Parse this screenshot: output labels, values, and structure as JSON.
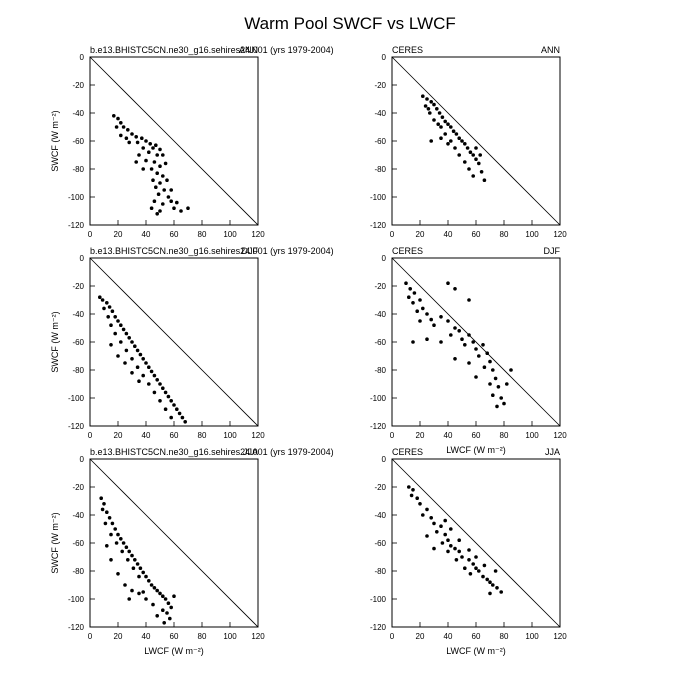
{
  "figure": {
    "title": "Warm Pool SWCF vs LWCF"
  },
  "chart_data": [
    {
      "type": "scatter",
      "id": "model-ann",
      "left_label": "b.e13.BHISTC5CN.ne30_g16.sehires24.001 (yrs 1979-2004)",
      "right_label": "ANN",
      "xlabel": "",
      "ylabel": "SWCF (W m⁻²)",
      "xlim": [
        0,
        120
      ],
      "ylim": [
        -120,
        0
      ],
      "xticks": [
        0,
        20,
        40,
        60,
        80,
        100,
        120
      ],
      "yticks": [
        0,
        -20,
        -40,
        -60,
        -80,
        -100,
        -120
      ],
      "one_to_one_line": true,
      "points": [
        [
          17,
          -42
        ],
        [
          20,
          -44
        ],
        [
          22,
          -47
        ],
        [
          19,
          -50
        ],
        [
          24,
          -50
        ],
        [
          27,
          -52
        ],
        [
          22,
          -56
        ],
        [
          26,
          -58
        ],
        [
          30,
          -55
        ],
        [
          33,
          -57
        ],
        [
          28,
          -61
        ],
        [
          34,
          -61
        ],
        [
          37,
          -58
        ],
        [
          40,
          -60
        ],
        [
          43,
          -62
        ],
        [
          38,
          -65
        ],
        [
          45,
          -65
        ],
        [
          47,
          -63
        ],
        [
          50,
          -66
        ],
        [
          42,
          -68
        ],
        [
          48,
          -70
        ],
        [
          52,
          -70
        ],
        [
          35,
          -70
        ],
        [
          40,
          -74
        ],
        [
          46,
          -75
        ],
        [
          50,
          -78
        ],
        [
          54,
          -76
        ],
        [
          44,
          -80
        ],
        [
          48,
          -83
        ],
        [
          52,
          -85
        ],
        [
          45,
          -88
        ],
        [
          50,
          -90
        ],
        [
          55,
          -88
        ],
        [
          47,
          -93
        ],
        [
          53,
          -95
        ],
        [
          49,
          -98
        ],
        [
          56,
          -100
        ],
        [
          46,
          -103
        ],
        [
          52,
          -105
        ],
        [
          58,
          -103
        ],
        [
          44,
          -108
        ],
        [
          50,
          -110
        ],
        [
          60,
          -108
        ],
        [
          48,
          -112
        ],
        [
          65,
          -110
        ],
        [
          70,
          -108
        ],
        [
          33,
          -75
        ],
        [
          38,
          -80
        ],
        [
          58,
          -95
        ],
        [
          62,
          -104
        ]
      ]
    },
    {
      "type": "scatter",
      "id": "ceres-ann",
      "left_label": "CERES",
      "right_label": "ANN",
      "xlabel": "",
      "ylabel": "",
      "xlim": [
        0,
        120
      ],
      "ylim": [
        -120,
        0
      ],
      "xticks": [
        0,
        20,
        40,
        60,
        80,
        100,
        120
      ],
      "yticks": [
        0,
        -20,
        -40,
        -60,
        -80,
        -100,
        -120
      ],
      "one_to_one_line": true,
      "points": [
        [
          22,
          -28
        ],
        [
          25,
          -30
        ],
        [
          28,
          -32
        ],
        [
          24,
          -35
        ],
        [
          30,
          -34
        ],
        [
          32,
          -37
        ],
        [
          27,
          -40
        ],
        [
          34,
          -40
        ],
        [
          36,
          -43
        ],
        [
          30,
          -45
        ],
        [
          38,
          -46
        ],
        [
          40,
          -48
        ],
        [
          35,
          -50
        ],
        [
          42,
          -50
        ],
        [
          44,
          -53
        ],
        [
          38,
          -55
        ],
        [
          46,
          -55
        ],
        [
          48,
          -58
        ],
        [
          42,
          -60
        ],
        [
          50,
          -60
        ],
        [
          52,
          -62
        ],
        [
          45,
          -65
        ],
        [
          54,
          -65
        ],
        [
          56,
          -68
        ],
        [
          48,
          -70
        ],
        [
          58,
          -70
        ],
        [
          60,
          -73
        ],
        [
          52,
          -75
        ],
        [
          62,
          -76
        ],
        [
          55,
          -80
        ],
        [
          64,
          -82
        ],
        [
          58,
          -85
        ],
        [
          66,
          -88
        ],
        [
          28,
          -60
        ],
        [
          35,
          -58
        ],
        [
          40,
          -62
        ],
        [
          60,
          -65
        ],
        [
          63,
          -70
        ],
        [
          26,
          -37
        ],
        [
          33,
          -48
        ]
      ]
    },
    {
      "type": "scatter",
      "id": "model-djf",
      "left_label": "b.e13.BHISTC5CN.ne30_g16.sehires24.001 (yrs 1979-2004)",
      "right_label": "DJF",
      "xlabel": "",
      "ylabel": "SWCF (W m⁻²)",
      "xlim": [
        0,
        120
      ],
      "ylim": [
        -120,
        0
      ],
      "xticks": [
        0,
        20,
        40,
        60,
        80,
        100,
        120
      ],
      "yticks": [
        0,
        -20,
        -40,
        -60,
        -80,
        -100,
        -120
      ],
      "one_to_one_line": true,
      "points": [
        [
          7,
          -28
        ],
        [
          9,
          -30
        ],
        [
          12,
          -32
        ],
        [
          10,
          -36
        ],
        [
          14,
          -35
        ],
        [
          16,
          -38
        ],
        [
          13,
          -42
        ],
        [
          18,
          -42
        ],
        [
          20,
          -45
        ],
        [
          15,
          -48
        ],
        [
          22,
          -48
        ],
        [
          24,
          -51
        ],
        [
          18,
          -54
        ],
        [
          26,
          -54
        ],
        [
          28,
          -57
        ],
        [
          22,
          -60
        ],
        [
          30,
          -60
        ],
        [
          32,
          -63
        ],
        [
          26,
          -66
        ],
        [
          34,
          -66
        ],
        [
          36,
          -69
        ],
        [
          30,
          -72
        ],
        [
          38,
          -72
        ],
        [
          40,
          -75
        ],
        [
          34,
          -78
        ],
        [
          42,
          -78
        ],
        [
          44,
          -81
        ],
        [
          38,
          -84
        ],
        [
          46,
          -84
        ],
        [
          48,
          -87
        ],
        [
          42,
          -90
        ],
        [
          50,
          -90
        ],
        [
          52,
          -93
        ],
        [
          46,
          -96
        ],
        [
          54,
          -96
        ],
        [
          56,
          -99
        ],
        [
          50,
          -102
        ],
        [
          58,
          -102
        ],
        [
          60,
          -105
        ],
        [
          54,
          -108
        ],
        [
          62,
          -108
        ],
        [
          64,
          -111
        ],
        [
          58,
          -114
        ],
        [
          66,
          -114
        ],
        [
          68,
          -117
        ],
        [
          20,
          -70
        ],
        [
          25,
          -75
        ],
        [
          30,
          -82
        ],
        [
          15,
          -62
        ],
        [
          35,
          -88
        ]
      ]
    },
    {
      "type": "scatter",
      "id": "ceres-djf",
      "left_label": "CERES",
      "right_label": "DJF",
      "xlabel": "LWCF (W m⁻²)",
      "ylabel": "",
      "xlim": [
        0,
        120
      ],
      "ylim": [
        -120,
        0
      ],
      "xticks": [
        0,
        20,
        40,
        60,
        80,
        100,
        120
      ],
      "yticks": [
        0,
        -20,
        -40,
        -60,
        -80,
        -100,
        -120
      ],
      "one_to_one_line": true,
      "points": [
        [
          10,
          -18
        ],
        [
          13,
          -22
        ],
        [
          12,
          -28
        ],
        [
          16,
          -25
        ],
        [
          15,
          -32
        ],
        [
          20,
          -30
        ],
        [
          18,
          -38
        ],
        [
          22,
          -36
        ],
        [
          25,
          -40
        ],
        [
          20,
          -45
        ],
        [
          28,
          -44
        ],
        [
          30,
          -48
        ],
        [
          35,
          -42
        ],
        [
          40,
          -45
        ],
        [
          45,
          -50
        ],
        [
          42,
          -55
        ],
        [
          48,
          -52
        ],
        [
          50,
          -58
        ],
        [
          55,
          -55
        ],
        [
          52,
          -62
        ],
        [
          58,
          -60
        ],
        [
          60,
          -65
        ],
        [
          65,
          -62
        ],
        [
          62,
          -70
        ],
        [
          68,
          -68
        ],
        [
          70,
          -74
        ],
        [
          66,
          -78
        ],
        [
          72,
          -80
        ],
        [
          74,
          -86
        ],
        [
          70,
          -90
        ],
        [
          76,
          -92
        ],
        [
          72,
          -98
        ],
        [
          78,
          -100
        ],
        [
          75,
          -106
        ],
        [
          80,
          -104
        ],
        [
          82,
          -90
        ],
        [
          85,
          -80
        ],
        [
          15,
          -60
        ],
        [
          25,
          -58
        ],
        [
          35,
          -60
        ],
        [
          45,
          -72
        ],
        [
          55,
          -75
        ],
        [
          60,
          -85
        ],
        [
          40,
          -18
        ],
        [
          45,
          -22
        ],
        [
          55,
          -30
        ]
      ]
    },
    {
      "type": "scatter",
      "id": "model-jja",
      "left_label": "b.e13.BHISTC5CN.ne30_g16.sehires24.001 (yrs 1979-2004)",
      "right_label": "JJA",
      "xlabel": "LWCF (W m⁻²)",
      "ylabel": "SWCF (W m⁻²)",
      "xlim": [
        0,
        120
      ],
      "ylim": [
        -120,
        0
      ],
      "xticks": [
        0,
        20,
        40,
        60,
        80,
        100,
        120
      ],
      "yticks": [
        0,
        -20,
        -40,
        -60,
        -80,
        -100,
        -120
      ],
      "one_to_one_line": true,
      "points": [
        [
          8,
          -28
        ],
        [
          10,
          -32
        ],
        [
          9,
          -36
        ],
        [
          12,
          -38
        ],
        [
          14,
          -42
        ],
        [
          11,
          -46
        ],
        [
          16,
          -46
        ],
        [
          18,
          -50
        ],
        [
          15,
          -54
        ],
        [
          20,
          -54
        ],
        [
          22,
          -57
        ],
        [
          19,
          -60
        ],
        [
          24,
          -60
        ],
        [
          26,
          -63
        ],
        [
          23,
          -66
        ],
        [
          28,
          -66
        ],
        [
          30,
          -69
        ],
        [
          27,
          -72
        ],
        [
          32,
          -72
        ],
        [
          34,
          -75
        ],
        [
          31,
          -78
        ],
        [
          36,
          -78
        ],
        [
          38,
          -81
        ],
        [
          35,
          -84
        ],
        [
          40,
          -84
        ],
        [
          42,
          -87
        ],
        [
          44,
          -90
        ],
        [
          46,
          -92
        ],
        [
          48,
          -94
        ],
        [
          50,
          -96
        ],
        [
          52,
          -98
        ],
        [
          54,
          -100
        ],
        [
          56,
          -103
        ],
        [
          58,
          -106
        ],
        [
          55,
          -110
        ],
        [
          57,
          -114
        ],
        [
          52,
          -108
        ],
        [
          45,
          -104
        ],
        [
          40,
          -100
        ],
        [
          35,
          -96
        ],
        [
          30,
          -94
        ],
        [
          25,
          -90
        ],
        [
          20,
          -82
        ],
        [
          15,
          -72
        ],
        [
          12,
          -62
        ],
        [
          48,
          -112
        ],
        [
          53,
          -117
        ],
        [
          60,
          -98
        ],
        [
          38,
          -95
        ],
        [
          28,
          -100
        ]
      ]
    },
    {
      "type": "scatter",
      "id": "ceres-jja",
      "left_label": "CERES",
      "right_label": "JJA",
      "xlabel": "LWCF (W m⁻²)",
      "ylabel": "",
      "xlim": [
        0,
        120
      ],
      "ylim": [
        -120,
        0
      ],
      "xticks": [
        0,
        20,
        40,
        60,
        80,
        100,
        120
      ],
      "yticks": [
        0,
        -20,
        -40,
        -60,
        -80,
        -100,
        -120
      ],
      "one_to_one_line": true,
      "points": [
        [
          12,
          -20
        ],
        [
          15,
          -22
        ],
        [
          14,
          -26
        ],
        [
          18,
          -28
        ],
        [
          20,
          -32
        ],
        [
          25,
          -36
        ],
        [
          22,
          -40
        ],
        [
          28,
          -42
        ],
        [
          30,
          -46
        ],
        [
          35,
          -48
        ],
        [
          32,
          -52
        ],
        [
          38,
          -54
        ],
        [
          40,
          -58
        ],
        [
          36,
          -60
        ],
        [
          42,
          -62
        ],
        [
          45,
          -64
        ],
        [
          40,
          -66
        ],
        [
          48,
          -66
        ],
        [
          50,
          -70
        ],
        [
          46,
          -72
        ],
        [
          55,
          -72
        ],
        [
          58,
          -75
        ],
        [
          52,
          -78
        ],
        [
          60,
          -78
        ],
        [
          62,
          -80
        ],
        [
          56,
          -82
        ],
        [
          65,
          -84
        ],
        [
          68,
          -86
        ],
        [
          70,
          -88
        ],
        [
          72,
          -90
        ],
        [
          75,
          -92
        ],
        [
          78,
          -95
        ],
        [
          66,
          -76
        ],
        [
          60,
          -70
        ],
        [
          55,
          -65
        ],
        [
          48,
          -58
        ],
        [
          42,
          -50
        ],
        [
          38,
          -44
        ],
        [
          30,
          -64
        ],
        [
          25,
          -55
        ],
        [
          70,
          -96
        ],
        [
          74,
          -80
        ]
      ]
    }
  ]
}
